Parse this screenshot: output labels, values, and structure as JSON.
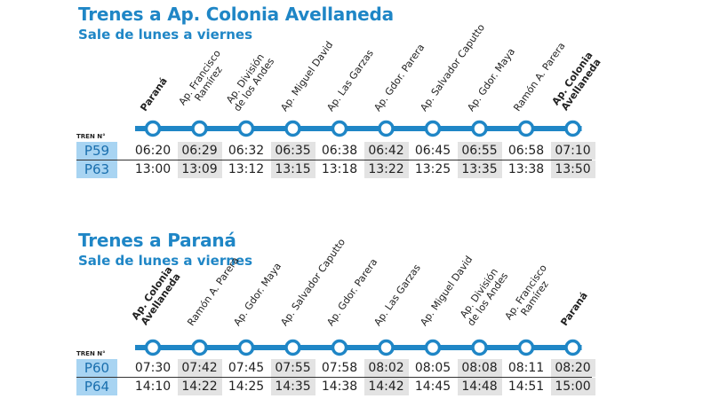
{
  "colors": {
    "accent": "#1f86c6",
    "line": "#1f86c6",
    "code_bg": "#a8d4f2",
    "shade": "#e3e3e3"
  },
  "sections": [
    {
      "title": "Trenes a Ap. Colonia Avellaneda",
      "subtitle": "Sale de lunes a viernes",
      "tren_label": "TREN N°",
      "stations": [
        {
          "lines": [
            "Paraná"
          ],
          "bold": true
        },
        {
          "lines": [
            "Ap. Francisco",
            "Ramírez"
          ],
          "bold": false
        },
        {
          "lines": [
            "Ap. División",
            "de los Andes"
          ],
          "bold": false
        },
        {
          "lines": [
            "Ap. Miguel David"
          ],
          "bold": false
        },
        {
          "lines": [
            "Ap. Las Garzas"
          ],
          "bold": false
        },
        {
          "lines": [
            "Ap. Gdor. Parera"
          ],
          "bold": false
        },
        {
          "lines": [
            "Ap. Salvador Caputto"
          ],
          "bold": false
        },
        {
          "lines": [
            "Ap. Gdor. Maya"
          ],
          "bold": false
        },
        {
          "lines": [
            "Ramón A. Parera"
          ],
          "bold": false
        },
        {
          "lines": [
            "Ap. Colonia",
            "Avellaneda"
          ],
          "bold": true
        }
      ],
      "trains": [
        {
          "code": "P59",
          "times": [
            "06:20",
            "06:29",
            "06:32",
            "06:35",
            "06:38",
            "06:42",
            "06:45",
            "06:55",
            "06:58",
            "07:10"
          ]
        },
        {
          "code": "P63",
          "times": [
            "13:00",
            "13:09",
            "13:12",
            "13:15",
            "13:18",
            "13:22",
            "13:25",
            "13:35",
            "13:38",
            "13:50"
          ]
        }
      ]
    },
    {
      "title": "Trenes a Paraná",
      "subtitle": "Sale de lunes a viernes",
      "tren_label": "TREN N°",
      "stations": [
        {
          "lines": [
            "Ap. Colonia",
            "Avellaneda"
          ],
          "bold": true
        },
        {
          "lines": [
            "Ramón A. Parera"
          ],
          "bold": false
        },
        {
          "lines": [
            "Ap. Gdor. Maya"
          ],
          "bold": false
        },
        {
          "lines": [
            "Ap. Salvador Caputto"
          ],
          "bold": false
        },
        {
          "lines": [
            "Ap. Gdor. Parera"
          ],
          "bold": false
        },
        {
          "lines": [
            "Ap. Las Garzas"
          ],
          "bold": false
        },
        {
          "lines": [
            "Ap. Miguel David"
          ],
          "bold": false
        },
        {
          "lines": [
            "Ap. División",
            "de los Andes"
          ],
          "bold": false
        },
        {
          "lines": [
            "Ap. Francisco",
            "Ramírez"
          ],
          "bold": false
        },
        {
          "lines": [
            "Paraná"
          ],
          "bold": true
        }
      ],
      "trains": [
        {
          "code": "P60",
          "times": [
            "07:30",
            "07:42",
            "07:45",
            "07:55",
            "07:58",
            "08:02",
            "08:05",
            "08:08",
            "08:11",
            "08:20"
          ]
        },
        {
          "code": "P64",
          "times": [
            "14:10",
            "14:22",
            "14:25",
            "14:35",
            "14:38",
            "14:42",
            "14:45",
            "14:48",
            "14:51",
            "15:00"
          ]
        }
      ]
    }
  ]
}
